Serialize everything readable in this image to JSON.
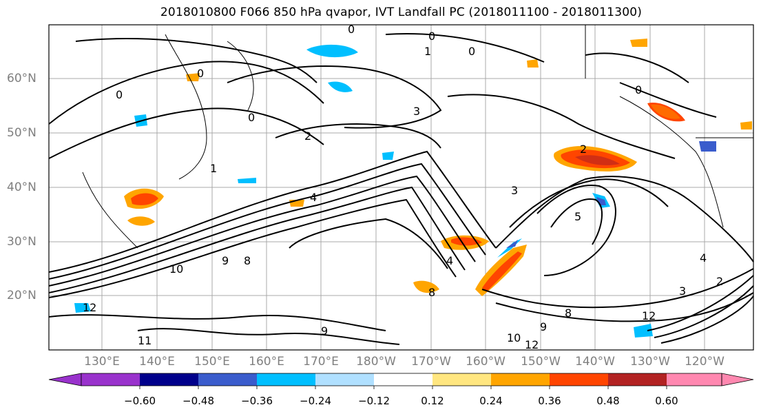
{
  "title": "2018010800 F066 850 hPa qvapor, IVT Landfall PC (2018011100 - 2018011300)",
  "map": {
    "lat_ticks": [
      {
        "label": "60°N"
      },
      {
        "label": "50°N"
      },
      {
        "label": "40°N"
      },
      {
        "label": "30°N"
      },
      {
        "label": "20°N"
      }
    ],
    "lon_ticks": [
      {
        "label": "130°E"
      },
      {
        "label": "140°E"
      },
      {
        "label": "150°E"
      },
      {
        "label": "160°E"
      },
      {
        "label": "170°E"
      },
      {
        "label": "180°W"
      },
      {
        "label": "170°W"
      },
      {
        "label": "160°W"
      },
      {
        "label": "150°W"
      },
      {
        "label": "140°W"
      },
      {
        "label": "130°W"
      },
      {
        "label": "120°W"
      }
    ],
    "contour_labels": [
      "0",
      "0",
      "0",
      "0",
      "1",
      "0",
      "0",
      "0",
      "3",
      "2",
      "1",
      "2",
      "4",
      "4",
      "9",
      "10",
      "8",
      "8",
      "9",
      "8",
      "12",
      "12",
      "10",
      "9",
      "11",
      "12",
      "3",
      "5",
      "2",
      "4",
      "3"
    ]
  },
  "colorbar": {
    "colors": [
      "#9932cc",
      "#00008b",
      "#3a5ccc",
      "#00bfff",
      "#b0e0ff",
      "#ffffff",
      "#ffe680",
      "#ffa500",
      "#ff4500",
      "#b22222",
      "#ff88b0"
    ],
    "ticks": [
      "−0.60",
      "−0.48",
      "−0.36",
      "−0.24",
      "−0.12",
      "0.12",
      "0.24",
      "0.36",
      "0.48",
      "0.60"
    ]
  }
}
